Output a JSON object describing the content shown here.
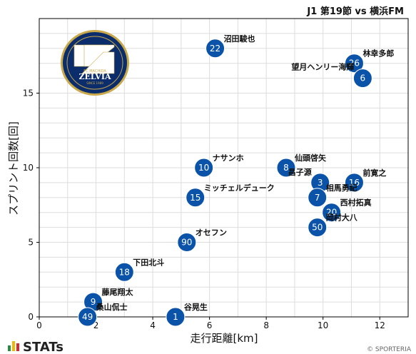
{
  "header": {
    "match_title": "J1 第19節 vs 横浜FM"
  },
  "footer": {
    "stats_logo_text": "STATs",
    "copyright": "© SPORTERIA"
  },
  "club_logo": {
    "text_top": "FC MACHIDA",
    "text_main": "ZELVIA",
    "text_bottom": "SINCE 1989",
    "colors": {
      "navy": "#0b2d6b",
      "gold": "#c9a94a"
    }
  },
  "colors": {
    "marker": "#0a53a8",
    "grid": "#dddddd",
    "axis": "#000000"
  },
  "chart_data": {
    "type": "scatter",
    "xlabel": "走行距離[km]",
    "ylabel": "スプリント回数[回]",
    "xlim": [
      0,
      13
    ],
    "ylim": [
      0,
      20
    ],
    "xticks": [
      "0",
      "2",
      "4",
      "6",
      "8",
      "10",
      "12"
    ],
    "yticks": [
      "0",
      "5",
      "10",
      "15"
    ],
    "grid": true,
    "points": [
      {
        "number": "22",
        "name": "沼田駿也",
        "x": 6.2,
        "y": 18
      },
      {
        "number": "26",
        "name": "林幸多郎",
        "x": 11.1,
        "y": 17
      },
      {
        "number": "6",
        "name": "望月ヘンリー海輝",
        "x": 11.4,
        "y": 16
      },
      {
        "number": "10",
        "name": "ナサンホ",
        "x": 5.8,
        "y": 10
      },
      {
        "number": "8",
        "name": "仙頭啓矢",
        "x": 8.7,
        "y": 10
      },
      {
        "number": "3",
        "name": "昌子源",
        "x": 9.9,
        "y": 9
      },
      {
        "number": "16",
        "name": "前寛之",
        "x": 11.1,
        "y": 9
      },
      {
        "number": "15",
        "name": "ミッチェルデューク",
        "x": 5.5,
        "y": 8
      },
      {
        "number": "7",
        "name": "相馬勇紀",
        "x": 9.8,
        "y": 8
      },
      {
        "number": "20",
        "name": "西村拓真",
        "x": 10.3,
        "y": 7
      },
      {
        "number": "50",
        "name": "岡村大八",
        "x": 9.8,
        "y": 6
      },
      {
        "number": "90",
        "name": "オセフン",
        "x": 5.2,
        "y": 5
      },
      {
        "number": "18",
        "name": "下田北斗",
        "x": 3.0,
        "y": 3
      },
      {
        "number": "9",
        "name": "藤尾翔太",
        "x": 1.9,
        "y": 1
      },
      {
        "number": "49",
        "name": "桑山侃士",
        "x": 1.7,
        "y": 0
      },
      {
        "number": "1",
        "name": "谷晃生",
        "x": 4.8,
        "y": 0
      }
    ]
  }
}
